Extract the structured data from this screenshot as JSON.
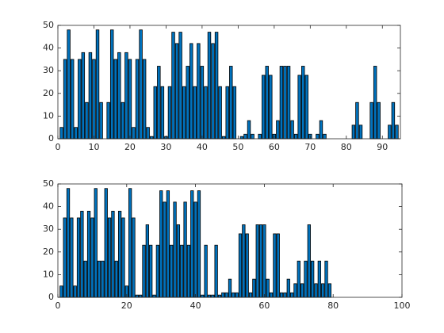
{
  "chart_data": [
    {
      "type": "bar",
      "color": "#0072bd",
      "x": [
        1,
        2,
        3,
        4,
        5,
        6,
        7,
        8,
        9,
        10,
        11,
        12,
        13,
        14,
        15,
        16,
        17,
        18,
        19,
        20,
        21,
        22,
        23,
        24,
        25,
        26,
        27,
        28,
        29,
        30,
        31,
        32,
        33,
        34,
        35,
        36,
        37,
        38,
        39,
        40,
        41,
        42,
        43,
        44,
        45,
        46,
        47,
        48,
        49,
        50,
        51,
        52,
        53,
        54,
        55,
        56,
        57,
        58,
        59,
        60,
        61,
        62,
        63,
        64,
        65,
        66,
        67,
        68,
        69,
        70,
        71,
        72,
        73,
        74,
        75,
        76,
        77,
        78,
        79,
        80,
        81,
        82,
        83,
        84,
        85,
        86,
        87,
        88,
        89,
        90,
        91,
        92,
        93,
        94
      ],
      "values": [
        5,
        35,
        48,
        35,
        5,
        35,
        38,
        16,
        38,
        35,
        48,
        16,
        0,
        16,
        48,
        35,
        38,
        16,
        38,
        35,
        5,
        35,
        48,
        35,
        5,
        1,
        23,
        32,
        23,
        1,
        23,
        47,
        42,
        47,
        23,
        32,
        42,
        23,
        42,
        32,
        23,
        47,
        42,
        47,
        23,
        1,
        23,
        32,
        23,
        0,
        1,
        2,
        8,
        2,
        0,
        2,
        28,
        32,
        28,
        2,
        8,
        32,
        32,
        32,
        8,
        2,
        28,
        32,
        28,
        2,
        0,
        2,
        8,
        2,
        0,
        0,
        0,
        0,
        0,
        0,
        0,
        6,
        16,
        6,
        0,
        0,
        16,
        32,
        16,
        0,
        0,
        6,
        16,
        6
      ],
      "xlim": [
        0,
        95
      ],
      "ylim": [
        0,
        50
      ],
      "xticks": [
        0,
        10,
        20,
        30,
        40,
        50,
        60,
        70,
        80,
        90
      ],
      "yticks": [
        0,
        10,
        20,
        30,
        40,
        50
      ]
    },
    {
      "type": "bar",
      "color": "#0072bd",
      "x": [
        1,
        2,
        3,
        4,
        5,
        6,
        7,
        8,
        9,
        10,
        11,
        12,
        13,
        14,
        15,
        16,
        17,
        18,
        19,
        20,
        21,
        22,
        23,
        24,
        25,
        26,
        27,
        28,
        29,
        30,
        31,
        32,
        33,
        34,
        35,
        36,
        37,
        38,
        39,
        40,
        41,
        42,
        43,
        44,
        45,
        46,
        47,
        48,
        49,
        50,
        51,
        52,
        53,
        54,
        55,
        56,
        57,
        58,
        59,
        60,
        61,
        62,
        63,
        64,
        65,
        66,
        67,
        68,
        69,
        70,
        71,
        72,
        73,
        74,
        75,
        76,
        77,
        78,
        79
      ],
      "values": [
        5,
        35,
        48,
        35,
        5,
        35,
        38,
        16,
        38,
        35,
        48,
        16,
        16,
        48,
        35,
        38,
        16,
        38,
        35,
        5,
        48,
        35,
        1,
        1,
        23,
        32,
        23,
        1,
        23,
        47,
        42,
        47,
        23,
        42,
        32,
        23,
        42,
        23,
        47,
        42,
        47,
        1,
        23,
        1,
        1,
        23,
        1,
        2,
        2,
        8,
        2,
        2,
        28,
        32,
        28,
        2,
        8,
        32,
        32,
        32,
        8,
        2,
        28,
        28,
        2,
        2,
        8,
        2,
        6,
        16,
        6,
        16,
        32,
        16,
        6,
        16,
        6,
        16,
        6
      ],
      "xlim": [
        0,
        100
      ],
      "ylim": [
        0,
        50
      ],
      "xticks": [
        0,
        20,
        40,
        60,
        80,
        100
      ],
      "yticks": [
        0,
        10,
        20,
        30,
        40,
        50
      ]
    }
  ]
}
